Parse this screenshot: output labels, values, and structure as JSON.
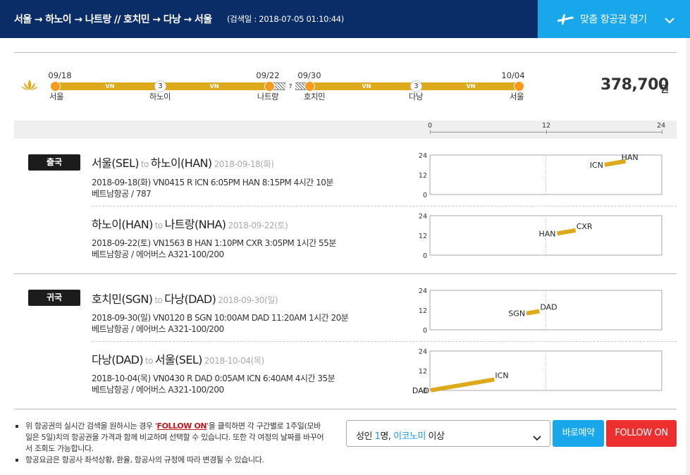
{
  "header": {
    "route_title": "서울 → 하노이 → 나트랑 // 호치민 → 다낭 → 서울",
    "search_date": "(검색일 : 2018-07-05 01:10:44)",
    "open_button_label": "맞춤 항공권 열기",
    "colors": {
      "bg": "#0a2d67",
      "button": "#19a7eb"
    }
  },
  "timeline": {
    "dates": [
      "09/18",
      "09/22",
      "09/30",
      "10/04"
    ],
    "cities": [
      "서울",
      "하노이",
      "나트랑",
      "호치민",
      "다낭",
      "서울"
    ],
    "stop_nights": [
      "3",
      "3"
    ],
    "gap_days": "7",
    "airline_code": "VN",
    "price": "378,700",
    "price_unit": "원",
    "icons": [
      "lotus-icon"
    ]
  },
  "hour_scale": {
    "labels": [
      "0",
      "12",
      "24"
    ]
  },
  "flights": {
    "outbound": {
      "badge": "출국",
      "legs": [
        {
          "from": "서울(SEL)",
          "to_word": "to",
          "to": "하노이(HAN)",
          "route_date": "2018-09-18(화)",
          "detail": "2018-09-18(화)    VN0415    R    ICN 6:05PM HAN 8:15PM    4시간 10분",
          "craft": "베트남항공 / 787"
        },
        {
          "from": "하노이(HAN)",
          "to_word": "to",
          "to": "나트랑(NHA)",
          "route_date": "2018-09-22(토)",
          "detail": "2018-09-22(토)    VN1563    B    HAN 1:10PM CXR 3:05PM    1시간 55분",
          "craft": "베트남항공 / 에어버스 A321-100/200"
        }
      ]
    },
    "return": {
      "badge": "귀국",
      "legs": [
        {
          "from": "호치민(SGN)",
          "to_word": "to",
          "to": "다낭(DAD)",
          "route_date": "2018-09-30(일)",
          "detail": "2018-09-30(일)    VN0120    B    SGN 10:00AM DAD 11:20AM    1시간 20분",
          "craft": "베트남항공 / 에어버스 A321-100/200"
        },
        {
          "from": "다낭(DAD)",
          "to_word": "to",
          "to": "서울(SEL)",
          "route_date": "2018-10-04(목)",
          "detail": "2018-10-04(목)    VN0430    R    DAD 0:05AM ICN 6:40AM    4시간 35분",
          "craft": "베트남항공 / 에어버스 A321-100/200"
        }
      ]
    }
  },
  "chart_data": [
    {
      "type": "line",
      "x": [
        18.08,
        20.25
      ],
      "y": [
        18.08,
        20.25
      ],
      "point_labels": [
        "ICN",
        "HAN"
      ],
      "yticks": [
        "24",
        "12",
        "0"
      ],
      "xlim": [
        0,
        24
      ],
      "ylim": [
        0,
        24
      ],
      "color": "#dcaa1a"
    },
    {
      "type": "line",
      "x": [
        13.17,
        15.08
      ],
      "y": [
        13.17,
        15.08
      ],
      "point_labels": [
        "HAN",
        "CXR"
      ],
      "yticks": [
        "24",
        "12",
        "0"
      ],
      "xlim": [
        0,
        24
      ],
      "ylim": [
        0,
        24
      ],
      "color": "#dcaa1a"
    },
    {
      "type": "line",
      "x": [
        10.0,
        11.33
      ],
      "y": [
        10.0,
        11.33
      ],
      "point_labels": [
        "SGN",
        "DAD"
      ],
      "yticks": [
        "24",
        "12",
        "0"
      ],
      "xlim": [
        0,
        24
      ],
      "ylim": [
        0,
        24
      ],
      "color": "#dcaa1a"
    },
    {
      "type": "line",
      "x": [
        0.08,
        6.67
      ],
      "y": [
        0.08,
        6.67
      ],
      "point_labels": [
        "DAD",
        "ICN"
      ],
      "yticks": [
        "24",
        "12",
        "0"
      ],
      "xlim": [
        0,
        24
      ],
      "ylim": [
        0,
        24
      ],
      "color": "#dcaa1a"
    }
  ],
  "footer": {
    "note1_pre": "위 항공권의 실시간 검색을 원하시는 경우 '",
    "note1_link": "FOLLOW ON",
    "note1_post": "'을 클릭하면 각 구간별로 1주일(모바일은 5일)치의 항공권을 가격과 함께 비교하며 선택할 수 있습니다. 또한 각 여정의 날짜를 바꾸어서 조회도 가능합니다.",
    "note2": "항공요금은 항공사 좌석상황, 환율, 항공사의 규정에 따라 변경될 수 있습니다.",
    "select": {
      "prefix": "성인 ",
      "count": "1",
      "mid": "명, ",
      "cabin": "이코노미",
      "suffix": " 이상"
    },
    "book_label": "바로예약",
    "follow_label": "FOLLOW ON"
  }
}
